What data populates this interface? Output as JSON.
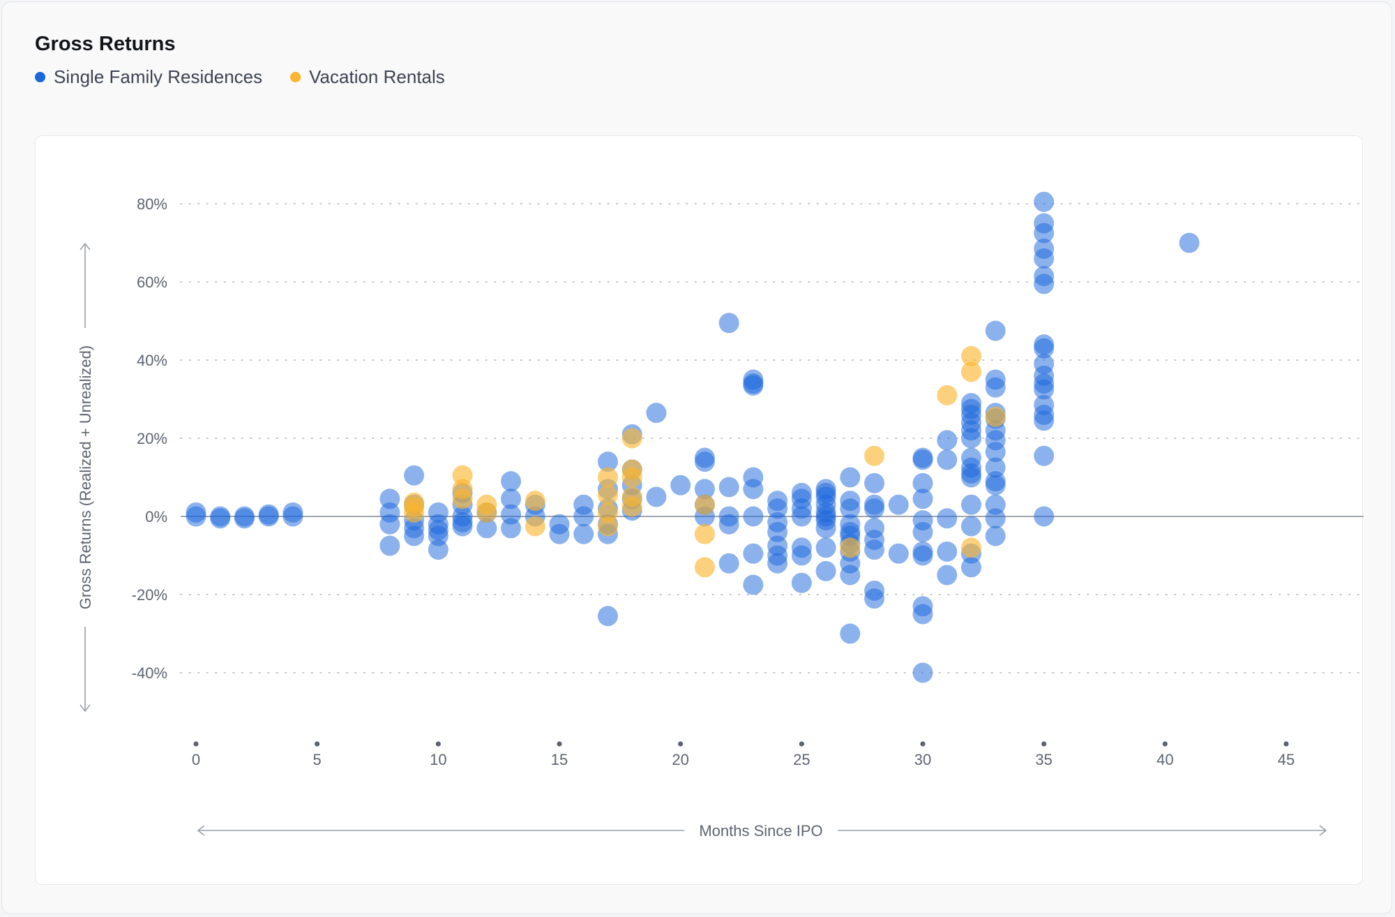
{
  "title": "Gross Returns",
  "legend": [
    {
      "label": "Single Family Residences",
      "color": "#1a66dc"
    },
    {
      "label": "Vacation Rentals",
      "color": "#fcb42c"
    }
  ],
  "colors": {
    "sfr": "#1a66dc",
    "vr": "#fcb42c",
    "axis_text": "#5d6470",
    "zero_line": "#a0a5ad",
    "grid": "#c4c8ce"
  },
  "chart_data": {
    "type": "scatter",
    "title": "Gross Returns",
    "xlabel": "Months Since IPO",
    "ylabel": "Gross Returns (Realized + Unrealized)",
    "xlim": [
      0,
      45
    ],
    "ylim": [
      -40,
      80
    ],
    "x_ticks": [
      0,
      5,
      10,
      15,
      20,
      25,
      30,
      35,
      40,
      45
    ],
    "x_tick_labels": [
      "0",
      "5",
      "10",
      "15",
      "20",
      "25",
      "30",
      "35",
      "40",
      "45"
    ],
    "y_ticks": [
      80,
      60,
      40,
      20,
      0,
      -20,
      -40
    ],
    "y_tick_labels": [
      "80%",
      "60%",
      "40%",
      "20%",
      "0%",
      "-20%",
      "-40%"
    ],
    "grid": "horizontal-dotted",
    "legend_position": "top-left",
    "series": [
      {
        "name": "Single Family Residences",
        "points": [
          [
            0,
            0
          ],
          [
            0,
            1
          ],
          [
            1,
            0
          ],
          [
            1,
            -0.5
          ],
          [
            2,
            0
          ],
          [
            2,
            -0.5
          ],
          [
            3,
            0
          ],
          [
            3,
            0.5
          ],
          [
            4,
            0
          ],
          [
            4,
            1
          ],
          [
            8,
            4.5
          ],
          [
            8,
            1
          ],
          [
            8,
            -2
          ],
          [
            8,
            -7.5
          ],
          [
            9,
            10.5
          ],
          [
            9,
            3
          ],
          [
            9,
            -1
          ],
          [
            9,
            -3
          ],
          [
            9,
            -5
          ],
          [
            10,
            1
          ],
          [
            10,
            -2
          ],
          [
            10,
            -3.5
          ],
          [
            10,
            -5
          ],
          [
            10,
            -8.5
          ],
          [
            11,
            6
          ],
          [
            11,
            3
          ],
          [
            11,
            0
          ],
          [
            11,
            -1.5
          ],
          [
            11,
            -2.5
          ],
          [
            12,
            1
          ],
          [
            12,
            -3
          ],
          [
            13,
            9
          ],
          [
            13,
            4.5
          ],
          [
            13,
            0.5
          ],
          [
            13,
            -3
          ],
          [
            14,
            3
          ],
          [
            14,
            0
          ],
          [
            15,
            -2
          ],
          [
            15,
            -4.5
          ],
          [
            16,
            3
          ],
          [
            16,
            0
          ],
          [
            16,
            -4.5
          ],
          [
            17,
            14
          ],
          [
            17,
            7
          ],
          [
            17,
            2
          ],
          [
            17,
            -2
          ],
          [
            17,
            -4.5
          ],
          [
            17,
            -25.5
          ],
          [
            18,
            21
          ],
          [
            18,
            12
          ],
          [
            18,
            8
          ],
          [
            18,
            4.5
          ],
          [
            18,
            1.5
          ],
          [
            19,
            26.5
          ],
          [
            19,
            5
          ],
          [
            20,
            8
          ],
          [
            21,
            15
          ],
          [
            21,
            14
          ],
          [
            21,
            7
          ],
          [
            21,
            3
          ],
          [
            21,
            0
          ],
          [
            22,
            49.5
          ],
          [
            22,
            7.5
          ],
          [
            22,
            0
          ],
          [
            22,
            -2
          ],
          [
            22,
            -12
          ],
          [
            23,
            35
          ],
          [
            23,
            34
          ],
          [
            23,
            33.5
          ],
          [
            23,
            10
          ],
          [
            23,
            7
          ],
          [
            23,
            0
          ],
          [
            23,
            -9.5
          ],
          [
            23,
            -17.5
          ],
          [
            24,
            4
          ],
          [
            24,
            2
          ],
          [
            24,
            -1.5
          ],
          [
            24,
            -4
          ],
          [
            24,
            -7.5
          ],
          [
            24,
            -10
          ],
          [
            24,
            -12
          ],
          [
            25,
            6
          ],
          [
            25,
            4.5
          ],
          [
            25,
            2
          ],
          [
            25,
            0
          ],
          [
            25,
            -8
          ],
          [
            25,
            -10
          ],
          [
            25,
            -17
          ],
          [
            26,
            7
          ],
          [
            26,
            6
          ],
          [
            26,
            5
          ],
          [
            26,
            3
          ],
          [
            26,
            1
          ],
          [
            26,
            0
          ],
          [
            26,
            -1
          ],
          [
            26,
            -3
          ],
          [
            26,
            -8
          ],
          [
            26,
            -14
          ],
          [
            27,
            10
          ],
          [
            27,
            4
          ],
          [
            27,
            2
          ],
          [
            27,
            -2
          ],
          [
            27,
            -4
          ],
          [
            27,
            -5
          ],
          [
            27,
            -7
          ],
          [
            27,
            -9
          ],
          [
            27,
            -12
          ],
          [
            27,
            -15
          ],
          [
            27,
            -30
          ],
          [
            28,
            8.5
          ],
          [
            28,
            3
          ],
          [
            28,
            2
          ],
          [
            28,
            -3
          ],
          [
            28,
            -6
          ],
          [
            28,
            -8.5
          ],
          [
            28,
            -19
          ],
          [
            28,
            -21
          ],
          [
            29,
            3
          ],
          [
            29,
            -9.5
          ],
          [
            30,
            15
          ],
          [
            30,
            14.5
          ],
          [
            30,
            8.5
          ],
          [
            30,
            4.5
          ],
          [
            30,
            -1
          ],
          [
            30,
            -4
          ],
          [
            30,
            -9
          ],
          [
            30,
            -10
          ],
          [
            30,
            -23
          ],
          [
            30,
            -25
          ],
          [
            30,
            -40
          ],
          [
            31,
            19.5
          ],
          [
            31,
            14.5
          ],
          [
            31,
            -0.5
          ],
          [
            31,
            -9
          ],
          [
            31,
            -15
          ],
          [
            32,
            29
          ],
          [
            32,
            27.5
          ],
          [
            32,
            26
          ],
          [
            32,
            24
          ],
          [
            32,
            22
          ],
          [
            32,
            20
          ],
          [
            32,
            15
          ],
          [
            32,
            12.5
          ],
          [
            32,
            11
          ],
          [
            32,
            10
          ],
          [
            32,
            3
          ],
          [
            32,
            -2.5
          ],
          [
            32,
            -9.5
          ],
          [
            32,
            -13
          ],
          [
            33,
            47.5
          ],
          [
            33,
            35
          ],
          [
            33,
            33
          ],
          [
            33,
            26.5
          ],
          [
            33,
            25
          ],
          [
            33,
            22
          ],
          [
            33,
            19.5
          ],
          [
            33,
            16.5
          ],
          [
            33,
            12.5
          ],
          [
            33,
            9
          ],
          [
            33,
            8
          ],
          [
            33,
            3
          ],
          [
            33,
            -0.5
          ],
          [
            33,
            -5
          ],
          [
            35,
            80.5
          ],
          [
            35,
            75
          ],
          [
            35,
            72.5
          ],
          [
            35,
            68.5
          ],
          [
            35,
            66
          ],
          [
            35,
            61.5
          ],
          [
            35,
            59.5
          ],
          [
            35,
            44
          ],
          [
            35,
            43
          ],
          [
            35,
            39
          ],
          [
            35,
            36
          ],
          [
            35,
            34
          ],
          [
            35,
            32.5
          ],
          [
            35,
            28.5
          ],
          [
            35,
            26
          ],
          [
            35,
            24.5
          ],
          [
            35,
            15.5
          ],
          [
            35,
            0
          ],
          [
            41,
            70
          ]
        ]
      },
      {
        "name": "Vacation Rentals",
        "points": [
          [
            9,
            3.5
          ],
          [
            9,
            2.5
          ],
          [
            9,
            1
          ],
          [
            11,
            10.5
          ],
          [
            11,
            7
          ],
          [
            11,
            4.5
          ],
          [
            12,
            3
          ],
          [
            12,
            1
          ],
          [
            14,
            4
          ],
          [
            14,
            -2.5
          ],
          [
            17,
            10
          ],
          [
            17,
            5.5
          ],
          [
            17,
            1
          ],
          [
            17,
            -2.5
          ],
          [
            18,
            20
          ],
          [
            18,
            12
          ],
          [
            18,
            10
          ],
          [
            18,
            5
          ],
          [
            18,
            2.5
          ],
          [
            21,
            3
          ],
          [
            21,
            -4.5
          ],
          [
            21,
            -13
          ],
          [
            27,
            -8
          ],
          [
            28,
            15.5
          ],
          [
            31,
            31
          ],
          [
            32,
            41
          ],
          [
            32,
            37
          ],
          [
            32,
            -8
          ],
          [
            33,
            25.5
          ]
        ]
      }
    ]
  }
}
